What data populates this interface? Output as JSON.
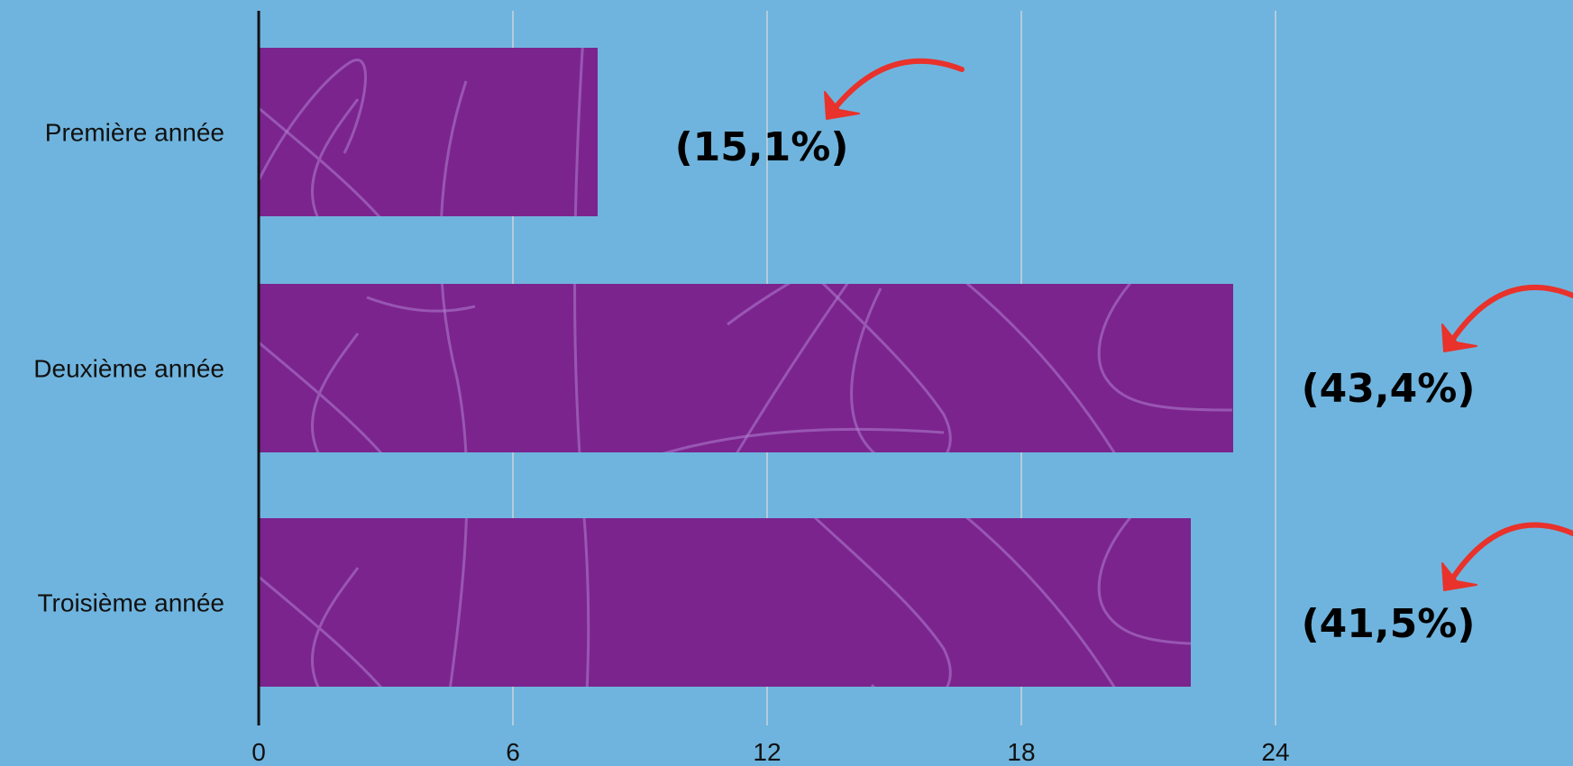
{
  "colors": {
    "background": "#6fb4de",
    "bar": "#7b248e",
    "bar_pattern": "#b07fcf",
    "gridline": "#c8d3dc",
    "axis": "#111111",
    "arrow": "#e8322b",
    "text": "#111111"
  },
  "chart_data": {
    "type": "bar",
    "orientation": "horizontal",
    "categories": [
      "Première année",
      "Deuxième année",
      "Troisième année"
    ],
    "values": [
      8,
      23,
      22
    ],
    "annotations": [
      "(15,1%)",
      "(43,4%)",
      "(41,5%)"
    ],
    "xlim": [
      0,
      30
    ],
    "xticks": [
      0,
      6,
      12,
      18,
      24
    ],
    "xtick_labels": [
      "0",
      "6",
      "12",
      "18",
      "24"
    ],
    "title": "",
    "xlabel": "",
    "ylabel": "",
    "grid": "vertical",
    "legend": "none"
  }
}
